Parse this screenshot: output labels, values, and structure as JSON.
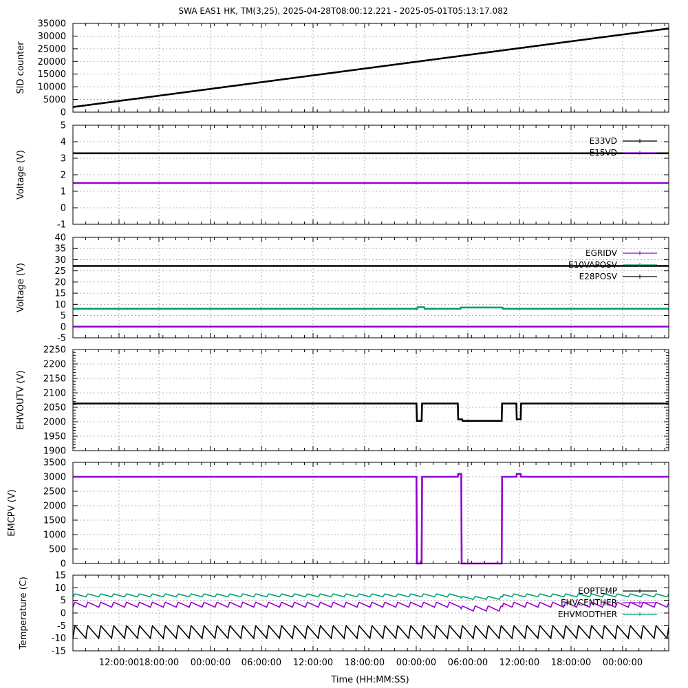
{
  "title": "SWA EAS1 HK, TM(3,25),  2025-04-28T08:00:12.221 - 2025-05-01T05:13:17.082",
  "xlabel": "Time (HH:MM:SS)",
  "x_tick_labels": [
    "12:00:00",
    "18:00:00",
    "00:00:00",
    "06:00:00",
    "12:00:00",
    "18:00:00",
    "00:00:00",
    "06:00:00",
    "12:00:00",
    "18:00:00",
    "00:00:00"
  ],
  "colors": {
    "black": "#000000",
    "purple": "#9400d3",
    "green": "#009e73"
  },
  "chart_data": [
    {
      "type": "line",
      "ylabel": "SID counter",
      "ylim": [
        0,
        35000
      ],
      "yticks": [
        0,
        5000,
        10000,
        15000,
        20000,
        25000,
        30000,
        35000
      ],
      "x_range_hours": [
        0,
        69.2
      ],
      "grid": true,
      "legend": "none",
      "series": [
        {
          "color": "black",
          "x_hours": [
            0,
            69.2
          ],
          "values": [
            2000,
            33000
          ]
        }
      ]
    },
    {
      "type": "line",
      "ylabel": "Voltage (V)",
      "ylim": [
        -1,
        5
      ],
      "yticks": [
        -1,
        0,
        1,
        2,
        3,
        4,
        5
      ],
      "x_range_hours": [
        0,
        69.2
      ],
      "grid": true,
      "legend": "top-right",
      "series": [
        {
          "name": "E33VD",
          "color": "black",
          "x_hours": [
            0,
            69.2
          ],
          "values": [
            3.3,
            3.3
          ]
        },
        {
          "name": "E15VD",
          "color": "purple",
          "x_hours": [
            0,
            69.2
          ],
          "values": [
            1.5,
            1.5
          ]
        }
      ]
    },
    {
      "type": "line",
      "ylabel": "Voltage (V)",
      "ylim": [
        -5,
        40
      ],
      "yticks": [
        -5,
        0,
        5,
        10,
        15,
        20,
        25,
        30,
        35,
        40
      ],
      "x_range_hours": [
        0,
        69.2
      ],
      "grid": true,
      "legend": "top-right",
      "series": [
        {
          "name": "EGRIDV",
          "color": "purple",
          "x_hours": [
            0,
            69.2
          ],
          "values": [
            0,
            0
          ]
        },
        {
          "name": "E10VAPOSV",
          "color": "green",
          "x_hours": [
            0,
            40.0,
            40.05,
            40.8,
            40.85,
            45.0,
            45.05,
            49.9,
            49.95,
            69.2
          ],
          "values": [
            8,
            8,
            8.7,
            8.7,
            8,
            8,
            8.6,
            8.6,
            8,
            8
          ]
        },
        {
          "name": "E28POSV",
          "color": "black",
          "x_hours": [
            0,
            69.2
          ],
          "values": [
            27.2,
            27.2
          ]
        }
      ]
    },
    {
      "type": "line",
      "ylabel": "EHVOUTV (V)",
      "ylim": [
        1900,
        2250
      ],
      "yticks": [
        1900,
        1950,
        2000,
        2050,
        2100,
        2150,
        2200,
        2250
      ],
      "x_range_hours": [
        0,
        69.2
      ],
      "grid": true,
      "legend": "none",
      "series": [
        {
          "color": "black",
          "x_hours": [
            0,
            39.9,
            39.95,
            40.5,
            40.55,
            44.7,
            44.75,
            45.2,
            45.25,
            49.8,
            49.85,
            51.5,
            51.55,
            52.0,
            52.05,
            69.2
          ],
          "values": [
            2063,
            2063,
            2003,
            2003,
            2063,
            2063,
            2008,
            2008,
            2003,
            2003,
            2063,
            2063,
            2008,
            2008,
            2063,
            2063
          ]
        }
      ]
    },
    {
      "type": "line",
      "ylabel": "EMCPV (V)",
      "ylim": [
        0,
        3500
      ],
      "yticks": [
        0,
        500,
        1000,
        1500,
        2000,
        2500,
        3000,
        3500
      ],
      "x_range_hours": [
        0,
        69.2
      ],
      "grid": true,
      "legend": "none",
      "series": [
        {
          "color": "purple",
          "x_hours": [
            0,
            39.9,
            39.95,
            40.5,
            40.55,
            44.7,
            44.75,
            45.1,
            45.15,
            49.8,
            49.85,
            51.5,
            51.55,
            52.0,
            52.05,
            69.2
          ],
          "values": [
            3000,
            3000,
            0,
            0,
            3000,
            3000,
            3100,
            3100,
            0,
            0,
            3000,
            3000,
            3100,
            3100,
            3000,
            3000
          ]
        }
      ]
    },
    {
      "type": "line",
      "ylabel": "Temperature (C)",
      "ylim": [
        -15,
        15
      ],
      "yticks": [
        -15,
        -10,
        -5,
        0,
        5,
        10,
        15
      ],
      "x_range_hours": [
        0,
        69.2
      ],
      "grid": true,
      "legend": "top-right",
      "series": [
        {
          "name": "EOPTEMP",
          "color": "black",
          "base": -7.5,
          "amplitude": 2.5,
          "period_hours": 1.5,
          "x_hours": [
            0,
            69.2
          ]
        },
        {
          "name": "EHVCENTHER",
          "color": "purple",
          "base": 3.3,
          "amplitude": 1.0,
          "period_hours": 1.5,
          "x_hours": [
            0,
            45,
            45.1,
            49.9,
            50,
            69.2
          ],
          "values": [
            3.3,
            3.3,
            1.8,
            1.8,
            3.3,
            3.3
          ]
        },
        {
          "name": "EHVMODTHER",
          "color": "green",
          "base": 7.0,
          "amplitude": 0.6,
          "period_hours": 1.5,
          "x_hours": [
            0,
            45,
            45.1,
            49.9,
            50,
            69.2
          ],
          "values": [
            7.0,
            7.0,
            6.0,
            6.0,
            7.0,
            7.0
          ]
        }
      ]
    }
  ]
}
